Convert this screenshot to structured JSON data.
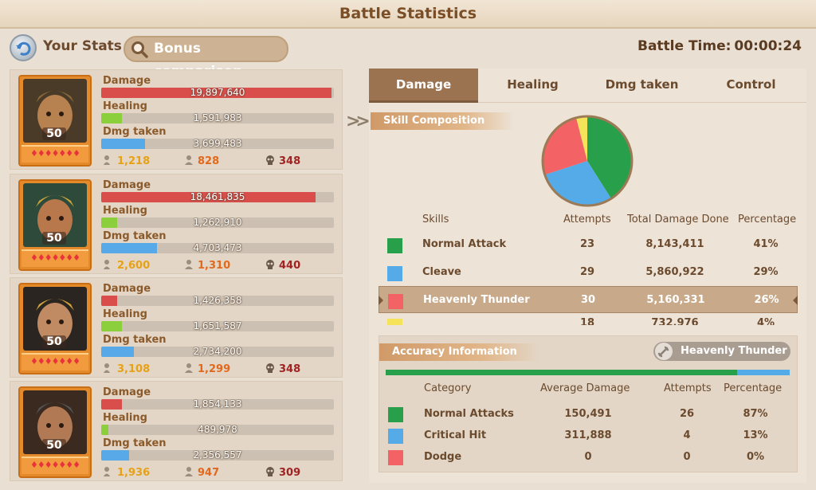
{
  "title": "Battle Statistics",
  "header": {
    "your_stats": "Your Stats",
    "bonus_comparison": "Bonus comparison",
    "battle_time_label": "Battle Time:",
    "battle_time_value": "00:00:24"
  },
  "heroes": [
    {
      "level": "50",
      "damage": "19,897,640",
      "damage_frac": 0.99,
      "healing": "1,591,983",
      "healing_frac": 0.09,
      "taken": "3,699,483",
      "taken_frac": 0.19,
      "stat1": "1,218",
      "stat2": "828",
      "stat3": "348"
    },
    {
      "level": "50",
      "damage": "18,461,835",
      "damage_frac": 0.92,
      "healing": "1,262,910",
      "healing_frac": 0.07,
      "taken": "4,703,473",
      "taken_frac": 0.24,
      "stat1": "2,600",
      "stat2": "1,310",
      "stat3": "440"
    },
    {
      "level": "50",
      "damage": "1,426,358",
      "damage_frac": 0.07,
      "healing": "1,651,587",
      "healing_frac": 0.09,
      "taken": "2,734,200",
      "taken_frac": 0.14,
      "stat1": "3,108",
      "stat2": "1,299",
      "stat3": "348"
    },
    {
      "level": "50",
      "damage": "1,854,133",
      "damage_frac": 0.09,
      "healing": "489,978",
      "healing_frac": 0.03,
      "taken": "2,356,557",
      "taken_frac": 0.12,
      "stat1": "1,936",
      "stat2": "947",
      "stat3": "309"
    }
  ],
  "labels": {
    "damage": "Damage",
    "healing": "Healing",
    "taken": "Dmg taken"
  },
  "tabs": [
    "Damage",
    "Healing",
    "Dmg taken",
    "Control"
  ],
  "skill_section": {
    "title": "Skill Composition",
    "headers": {
      "skills": "Skills",
      "attempts": "Attempts",
      "total": "Total Damage Done",
      "percentage": "Percentage"
    },
    "rows": [
      {
        "name": "Normal Attack",
        "attempts": "23",
        "total": "8,143,411",
        "pct": "41%",
        "color": "#28a04b"
      },
      {
        "name": "Cleave",
        "attempts": "29",
        "total": "5,860,922",
        "pct": "29%",
        "color": "#55aae8"
      },
      {
        "name": "Heavenly Thunder",
        "attempts": "30",
        "total": "5,160,331",
        "pct": "26%",
        "color": "#f36365"
      },
      {
        "name": "",
        "attempts": "18",
        "total": "732,976",
        "pct": "4%",
        "color": "#f5e45a"
      }
    ]
  },
  "chart_data": {
    "type": "pie",
    "categories": [
      "Normal Attack",
      "Cleave",
      "Heavenly Thunder",
      ""
    ],
    "values": [
      41,
      29,
      26,
      4
    ],
    "colors": [
      "#28a04b",
      "#55aae8",
      "#f36365",
      "#f5e45a"
    ]
  },
  "accuracy": {
    "title": "Accuracy Information",
    "hero": "Heavenly Thunder",
    "bar_fraction_green": 0.87,
    "headers": {
      "category": "Category",
      "avg": "Average Damage",
      "attempts": "Attempts",
      "percentage": "Percentage"
    },
    "rows": [
      {
        "name": "Normal Attacks",
        "avg": "150,491",
        "attempts": "26",
        "pct": "87%",
        "color": "#28a04b"
      },
      {
        "name": "Critical Hit",
        "avg": "311,888",
        "attempts": "4",
        "pct": "13%",
        "color": "#55aae8"
      },
      {
        "name": "Dodge",
        "avg": "0",
        "attempts": "0",
        "pct": "0%",
        "color": "#f36365"
      }
    ]
  }
}
